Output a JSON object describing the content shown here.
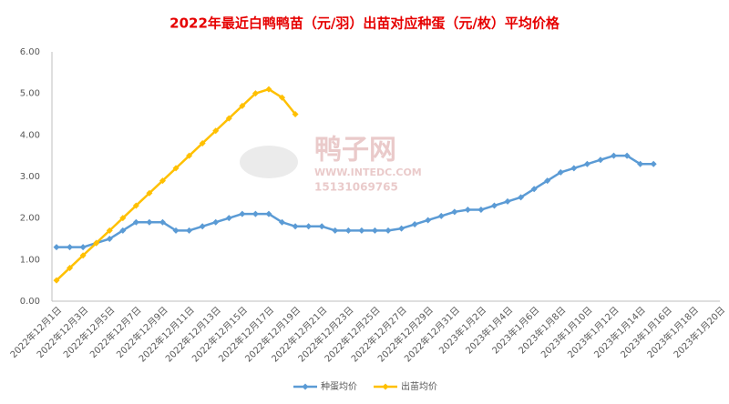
{
  "chart_data": {
    "type": "line",
    "title": "2022年最近白鸭鸭苗（元/羽）出苗对应种蛋（元/枚）平均价格",
    "watermark": [
      "鸭子网",
      "WWW.INTEDC.COM",
      "15131069765"
    ],
    "categories": [
      "2022年12月1日",
      null,
      "2022年12月3日",
      null,
      "2022年12月5日",
      null,
      "2022年12月7日",
      null,
      "2022年12月9日",
      null,
      "2022年12月11日",
      null,
      "2022年12月13日",
      null,
      "2022年12月15日",
      null,
      "2022年12月17日",
      null,
      "2022年12月19日",
      null,
      "2022年12月21日",
      null,
      "2022年12月23日",
      null,
      "2022年12月25日",
      null,
      "2022年12月27日",
      null,
      "2022年12月29日",
      null,
      "2022年12月31日",
      null,
      "2023年1月2日",
      null,
      "2023年1月4日",
      null,
      "2023年1月6日",
      null,
      "2023年1月8日",
      null,
      "2023年1月10日",
      null,
      "2023年1月12日",
      null,
      "2023年1月14日",
      null,
      "2023年1月16日",
      null,
      "2023年1月18日",
      null,
      "2023年1月20日"
    ],
    "series": [
      {
        "name": "种蛋均价",
        "color": "#5b9bd5",
        "values": [
          1.3,
          1.3,
          1.3,
          1.4,
          1.5,
          1.7,
          1.9,
          1.9,
          1.9,
          1.7,
          1.7,
          1.8,
          1.9,
          2.0,
          2.1,
          2.1,
          2.1,
          1.9,
          1.8,
          1.8,
          1.8,
          1.7,
          1.7,
          1.7,
          1.7,
          1.7,
          1.75,
          1.85,
          1.95,
          2.05,
          2.15,
          2.2,
          2.2,
          2.3,
          2.4,
          2.5,
          2.7,
          2.9,
          3.1,
          3.2,
          3.3,
          3.4,
          3.5,
          3.5,
          3.3,
          3.3,
          null,
          null,
          null,
          null,
          null
        ]
      },
      {
        "name": "出苗均价",
        "color": "#ffc000",
        "values": [
          0.5,
          0.8,
          1.1,
          1.4,
          1.7,
          2.0,
          2.3,
          2.6,
          2.9,
          3.2,
          3.5,
          3.8,
          4.1,
          4.4,
          4.7,
          5.0,
          5.1,
          4.9,
          4.5,
          null,
          null,
          null,
          null,
          null,
          null,
          null,
          null,
          null,
          null,
          null,
          null,
          null,
          null,
          null,
          null,
          null,
          null,
          null,
          null,
          null,
          null,
          null,
          null,
          null,
          null,
          null,
          null,
          null,
          null,
          null,
          null
        ]
      }
    ],
    "ylim": [
      0,
      6
    ],
    "yticks": [
      {
        "value": 0,
        "label": "0.00"
      },
      {
        "value": 1,
        "label": "1.00"
      },
      {
        "value": 2,
        "label": "2.00"
      },
      {
        "value": 3,
        "label": "3.00"
      },
      {
        "value": 4,
        "label": "4.00"
      },
      {
        "value": 5,
        "label": "5.00"
      },
      {
        "value": 6,
        "label": "6.00"
      }
    ],
    "grid": false,
    "legend": "bottom"
  }
}
